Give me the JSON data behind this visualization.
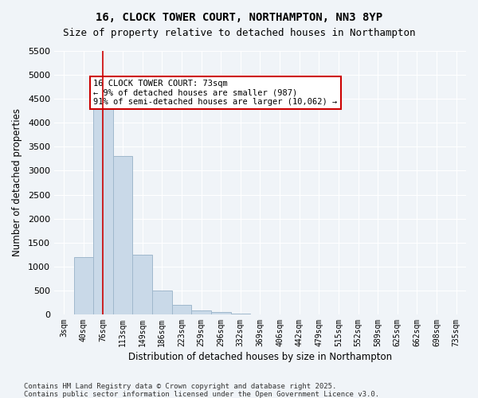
{
  "title_line1": "16, CLOCK TOWER COURT, NORTHAMPTON, NN3 8YP",
  "title_line2": "Size of property relative to detached houses in Northampton",
  "xlabel": "Distribution of detached houses by size in Northampton",
  "ylabel": "Number of detached properties",
  "categories": [
    "3sqm",
    "40sqm",
    "76sqm",
    "113sqm",
    "149sqm",
    "186sqm",
    "223sqm",
    "259sqm",
    "296sqm",
    "332sqm",
    "369sqm",
    "406sqm",
    "442sqm",
    "479sqm",
    "515sqm",
    "552sqm",
    "589sqm",
    "625sqm",
    "662sqm",
    "698sqm",
    "735sqm"
  ],
  "values": [
    0,
    1200,
    4350,
    3300,
    1250,
    500,
    200,
    80,
    50,
    20,
    5,
    5,
    3,
    3,
    3,
    2,
    2,
    2,
    2,
    2,
    2
  ],
  "bar_color": "#c9d9e8",
  "bar_edge_color": "#a0b8cc",
  "vline_x_index": 2,
  "vline_color": "#cc0000",
  "annotation_text": "16 CLOCK TOWER COURT: 73sqm\n← 9% of detached houses are smaller (987)\n91% of semi-detached houses are larger (10,062) →",
  "annotation_box_color": "#ffffff",
  "annotation_box_edge": "#cc0000",
  "ylim": [
    0,
    5500
  ],
  "yticks": [
    0,
    500,
    1000,
    1500,
    2000,
    2500,
    3000,
    3500,
    4000,
    4500,
    5000,
    5500
  ],
  "background_color": "#f0f4f8",
  "grid_color": "#ffffff",
  "footer_line1": "Contains HM Land Registry data © Crown copyright and database right 2025.",
  "footer_line2": "Contains public sector information licensed under the Open Government Licence v3.0."
}
